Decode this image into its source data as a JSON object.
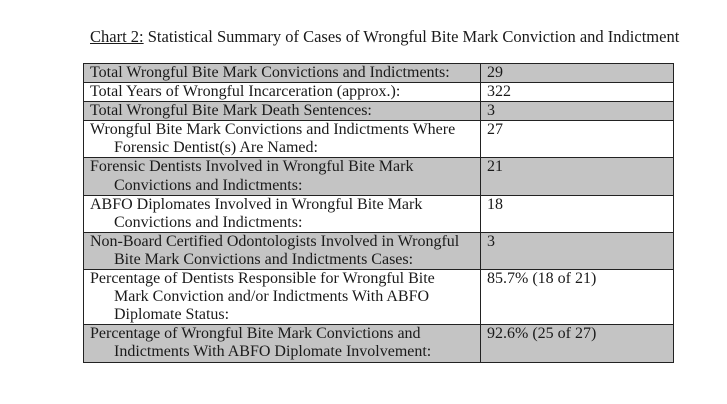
{
  "title": {
    "label": "Chart 2:",
    "text": " Statistical Summary of Cases of Wrongful Bite Mark Conviction and Indictment"
  },
  "colors": {
    "shaded_row": "#c4c4c4",
    "border": "#222222"
  },
  "rows": [
    {
      "label": [
        "Total Wrongful Bite Mark Convictions and Indictments:"
      ],
      "value": "29"
    },
    {
      "label": [
        "Total Years of Wrongful Incarceration (approx.):"
      ],
      "value": "322"
    },
    {
      "label": [
        "Total Wrongful Bite Mark Death Sentences:"
      ],
      "value": "3"
    },
    {
      "label": [
        "Wrongful Bite Mark Convictions and Indictments Where",
        "Forensic Dentist(s) Are Named:"
      ],
      "value": "27"
    },
    {
      "label": [
        "Forensic Dentists Involved in Wrongful Bite Mark",
        "Convictions and Indictments:"
      ],
      "value": "21"
    },
    {
      "label": [
        "ABFO Diplomates Involved in Wrongful Bite Mark",
        "Convictions and Indictments:"
      ],
      "value": "18"
    },
    {
      "label": [
        "Non-Board Certified Odontologists Involved in Wrongful",
        "Bite Mark Convictions and Indictments Cases:"
      ],
      "value": "3"
    },
    {
      "label": [
        "Percentage of Dentists Responsible for Wrongful Bite",
        "Mark Conviction and/or Indictments With ABFO",
        "Diplomate Status:"
      ],
      "value": "85.7% (18 of 21)"
    },
    {
      "label": [
        "Percentage of Wrongful Bite Mark Convictions and",
        "Indictments With ABFO Diplomate Involvement:"
      ],
      "value": "92.6% (25 of 27)"
    }
  ]
}
